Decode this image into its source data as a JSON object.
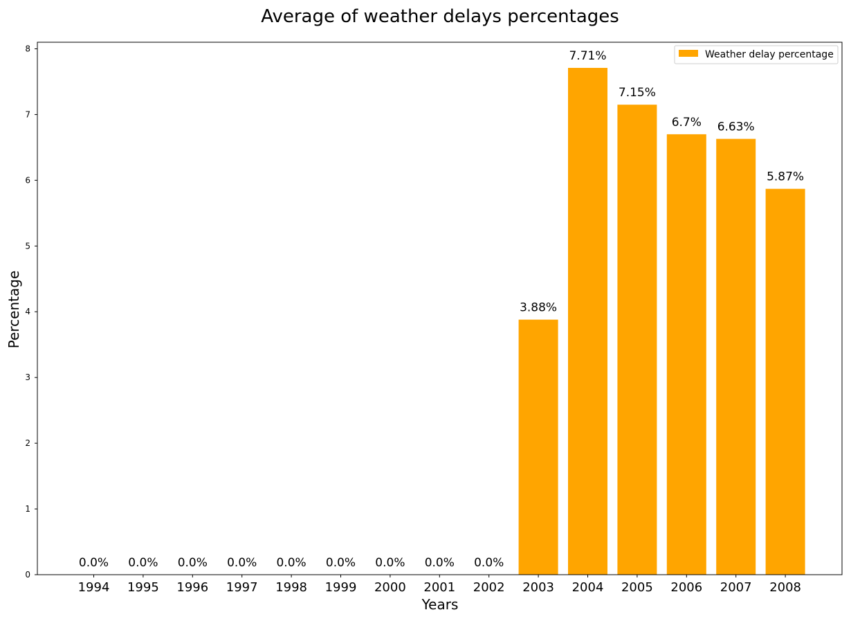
{
  "chart_data": {
    "type": "bar",
    "title": "Average of weather delays percentages",
    "xlabel": "Years",
    "ylabel": "Percentage",
    "categories": [
      "1994",
      "1995",
      "1996",
      "1997",
      "1998",
      "1999",
      "2000",
      "2001",
      "2002",
      "2003",
      "2004",
      "2005",
      "2006",
      "2007",
      "2008"
    ],
    "series": [
      {
        "name": "Weather delay percentage",
        "values": [
          0.0,
          0.0,
          0.0,
          0.0,
          0.0,
          0.0,
          0.0,
          0.0,
          0.0,
          3.88,
          7.71,
          7.15,
          6.7,
          6.63,
          5.87
        ],
        "labels": [
          "0.0%",
          "0.0%",
          "0.0%",
          "0.0%",
          "0.0%",
          "0.0%",
          "0.0%",
          "0.0%",
          "0.0%",
          "3.88%",
          "7.71%",
          "7.15%",
          "6.7%",
          "6.63%",
          "5.87%"
        ],
        "color": "#FFA500"
      }
    ],
    "ylim": [
      0,
      8.1
    ],
    "yticks": [
      0,
      1,
      2,
      3,
      4,
      5,
      6,
      7,
      8
    ],
    "grid": false,
    "legend_position": "top-right"
  }
}
